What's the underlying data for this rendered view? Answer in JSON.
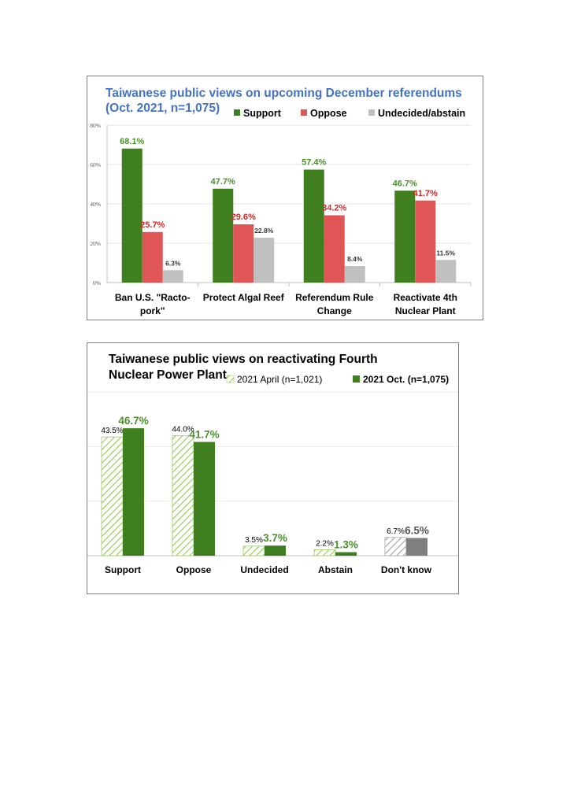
{
  "chart_data": [
    {
      "type": "bar",
      "title": "Taiwanese public views on upcoming December referendums",
      "subtitle": "(Oct. 2021, n=1,075)",
      "categories": [
        [
          "Ban U.S. \"Racto-",
          "pork\""
        ],
        [
          "Protect Algal Reef"
        ],
        [
          "Referendum Rule",
          "Change"
        ],
        [
          "Reactivate 4th",
          "Nuclear Plant"
        ]
      ],
      "series": [
        {
          "name": "Support",
          "color": "#3f7f1f",
          "label_color": "#4a8f2a",
          "values": [
            68.1,
            47.7,
            57.4,
            46.7
          ],
          "labels": [
            "68.1%",
            "47.7%",
            "57.4%",
            "46.7%"
          ]
        },
        {
          "name": "Oppose",
          "color": "#e05555",
          "label_color": "#d02a2a",
          "values": [
            25.7,
            29.6,
            34.2,
            41.7
          ],
          "labels": [
            "25.7%",
            "29.6%",
            "34.2%",
            "41.7%"
          ]
        },
        {
          "name": "Undecided/abstain",
          "color": "#c0c0c0",
          "label_color": "#333333",
          "values": [
            6.3,
            22.8,
            8.4,
            11.5
          ],
          "labels": [
            "6.3%",
            "22.8%",
            "8.4%",
            "11.5%"
          ]
        }
      ],
      "yticks": [
        "0%",
        "20%",
        "40%",
        "60%",
        "80%"
      ],
      "ylim": [
        0,
        80
      ],
      "grid": true,
      "legend": "top-right",
      "title_color": "#4472c4"
    },
    {
      "type": "bar",
      "title": "Taiwanese public views on reactivating Fourth Nuclear Power Plant",
      "categories": [
        "Support",
        "Oppose",
        "Undecided",
        "Abstain",
        "Don't know"
      ],
      "series": [
        {
          "name": "2021 April (n=1,021)",
          "pattern": "hatched",
          "color": "#9acd5a",
          "values": [
            43.5,
            44.0,
            3.5,
            2.2,
            6.7
          ],
          "labels": [
            "43.5%",
            "44.0%",
            "3.5%",
            "2.2%",
            "6.7%"
          ]
        },
        {
          "name": "2021 Oct. (n=1,075)",
          "color": "#3f7f1f",
          "label_color": "#4a8f2a",
          "values": [
            46.7,
            41.7,
            3.7,
            1.3,
            6.5
          ],
          "labels": [
            "46.7%",
            "41.7%",
            "3.7%",
            "1.3%",
            "6.5%"
          ]
        }
      ],
      "highlight_category": "Don't know",
      "highlight_colors": {
        "hatched": "#a6a6a6",
        "solid": "#7f7f7f"
      },
      "ylim": [
        0,
        60
      ],
      "grid": true,
      "legend": "top-right"
    }
  ]
}
